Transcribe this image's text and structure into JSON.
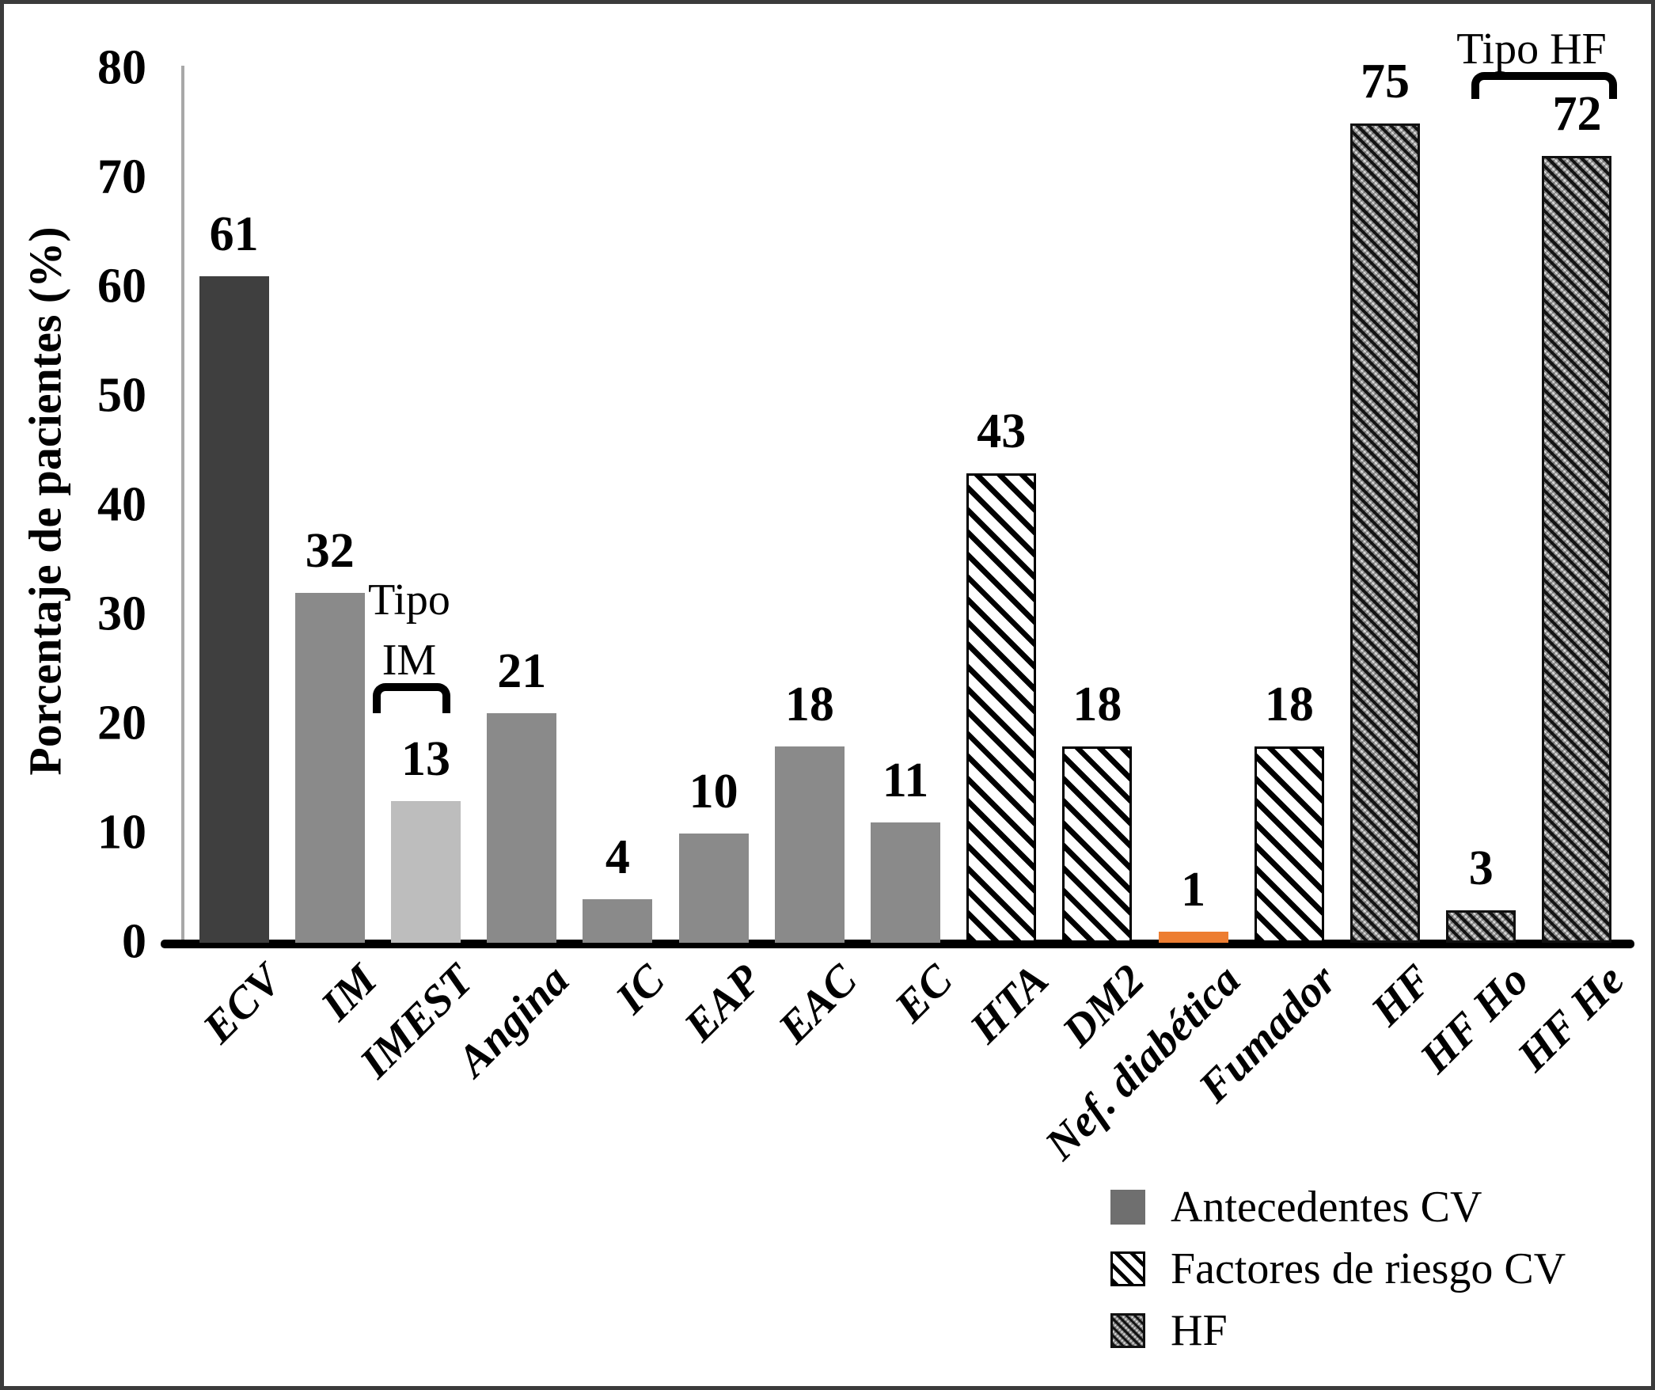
{
  "colors": {
    "dark_gray": "#3f3f3f",
    "medium_gray": "#8a8a8a",
    "light_gray": "#bdbdbd",
    "orange": "#ed7d31",
    "legend_solid_gray": "#6f6f6f",
    "ink": "#000000",
    "axis_gray": "#a8a8a8",
    "frame": "#3b3b3b"
  },
  "chart_data": {
    "type": "bar",
    "title": "",
    "ylabel": "Porcentaje de pacientes (%)",
    "xlabel": "",
    "ylim": [
      0,
      80
    ],
    "yticks": [
      80,
      70,
      60,
      50,
      40,
      30,
      20,
      10,
      0
    ],
    "grid": false,
    "categories": [
      "ECV",
      "IM",
      "IMEST",
      "Angina",
      "IC",
      "EAP",
      "EAC",
      "EC",
      "HTA",
      "DM2",
      "Nef. diabética",
      "Fumador",
      "HF",
      "HF Ho",
      "HF He"
    ],
    "values": [
      61,
      32,
      13,
      21,
      4,
      10,
      18,
      11,
      43,
      18,
      1,
      18,
      75,
      3,
      72
    ],
    "bars": [
      {
        "label": "ECV",
        "value": 61,
        "group": "Antecedentes CV",
        "style": "dark"
      },
      {
        "label": "IM",
        "value": 32,
        "group": "Antecedentes CV",
        "style": "gray"
      },
      {
        "label": "IMEST",
        "value": 13,
        "group": "Antecedentes CV (Tipo IM)",
        "style": "light"
      },
      {
        "label": "Angina",
        "value": 21,
        "group": "Antecedentes CV",
        "style": "gray"
      },
      {
        "label": "IC",
        "value": 4,
        "group": "Antecedentes CV",
        "style": "gray"
      },
      {
        "label": "EAP",
        "value": 10,
        "group": "Antecedentes CV",
        "style": "gray"
      },
      {
        "label": "EAC",
        "value": 18,
        "group": "Antecedentes CV",
        "style": "gray"
      },
      {
        "label": "EC",
        "value": 11,
        "group": "Antecedentes CV",
        "style": "gray"
      },
      {
        "label": "HTA",
        "value": 43,
        "group": "Factores de riesgo CV",
        "style": "hatch"
      },
      {
        "label": "DM2",
        "value": 18,
        "group": "Factores de riesgo CV",
        "style": "hatch"
      },
      {
        "label": "Nef. diabética",
        "value": 1,
        "group": "Factores de riesgo CV",
        "style": "orange"
      },
      {
        "label": "Fumador",
        "value": 18,
        "group": "Factores de riesgo CV",
        "style": "hatch"
      },
      {
        "label": "HF",
        "value": 75,
        "group": "HF",
        "style": "dense"
      },
      {
        "label": "HF Ho",
        "value": 3,
        "group": "HF (Tipo HF)",
        "style": "dense"
      },
      {
        "label": "HF He",
        "value": 72,
        "group": "HF (Tipo HF)",
        "style": "dense"
      }
    ],
    "legend": {
      "position": "bottom-right",
      "items": [
        {
          "label": "Antecedentes CV",
          "style": "solid"
        },
        {
          "label": "Factores de riesgo CV",
          "style": "hatch"
        },
        {
          "label": "HF",
          "style": "dense"
        }
      ]
    },
    "annotations": [
      {
        "label": "Tipo IM",
        "over": "IMEST"
      },
      {
        "label": "Tipo HF",
        "over": "HF Ho, HF He"
      }
    ]
  }
}
